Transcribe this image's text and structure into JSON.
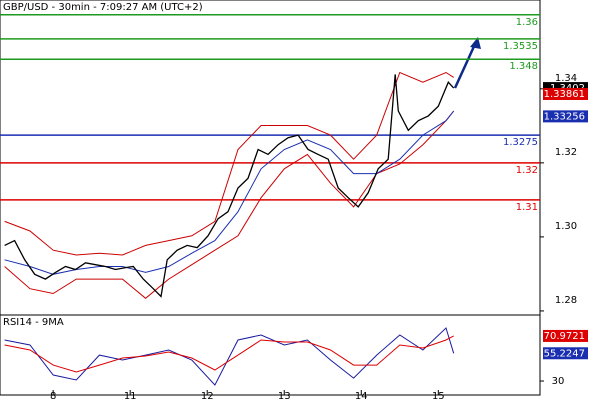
{
  "chart_data": {
    "type": "line",
    "title": "GBP/USD - 30min - 7:09:27 AM (UTC+2)",
    "x": [
      7.37,
      7.5,
      7.63,
      7.76,
      7.9,
      8.03,
      8.16,
      8.29,
      8.42,
      8.55,
      8.68,
      8.81,
      8.94,
      9.04,
      9.17,
      9.3,
      9.4,
      9.48,
      9.61,
      9.74,
      9.87,
      10.01,
      10.14,
      10.27,
      10.4,
      10.53,
      10.66,
      10.79,
      10.92,
      11.05,
      11.18,
      11.31,
      11.44,
      11.57,
      11.7,
      11.83,
      11.96,
      12.09,
      12.22,
      12.35,
      12.44,
      12.48,
      12.61,
      12.74,
      12.87,
      13.0,
      13.13,
      13.2
    ],
    "series": [
      {
        "color": "#000000",
        "values": [
          1.2977,
          1.299,
          1.2938,
          1.2899,
          1.2886,
          1.2904,
          1.292,
          1.2912,
          1.293,
          1.2925,
          1.292,
          1.2912,
          1.2917,
          1.292,
          1.2886,
          1.286,
          1.2839,
          1.2938,
          1.2964,
          1.2977,
          1.2971,
          1.3003,
          1.3049,
          1.3068,
          1.3132,
          1.3158,
          1.3236,
          1.3223,
          1.3249,
          1.3268,
          1.3275,
          1.3236,
          1.3223,
          1.321,
          1.3132,
          1.3106,
          1.3081,
          1.3119,
          1.3184,
          1.321,
          1.3439,
          1.334,
          1.3288,
          1.3314,
          1.3327,
          1.3353,
          1.3418,
          1.3402
        ]
      }
    ],
    "bands_x": [
      7.37,
      7.7,
      8.0,
      8.3,
      8.6,
      8.9,
      9.2,
      9.5,
      9.8,
      10.1,
      10.4,
      10.7,
      11.0,
      11.3,
      11.6,
      11.9,
      12.2,
      12.5,
      12.8,
      13.1,
      13.2
    ],
    "bands": [
      {
        "color": "#cc0000",
        "values": [
          1.3042,
          1.3016,
          1.2964,
          1.2951,
          1.2956,
          1.2951,
          1.2977,
          1.299,
          1.3003,
          1.3042,
          1.3236,
          1.3301,
          1.3301,
          1.3301,
          1.3275,
          1.321,
          1.3275,
          1.3444,
          1.3418,
          1.3444,
          1.3431
        ]
      },
      {
        "color": "#cc0000",
        "values": [
          1.292,
          1.286,
          1.2847,
          1.2886,
          1.2886,
          1.2886,
          1.2834,
          1.2886,
          1.2925,
          1.2964,
          1.3003,
          1.3106,
          1.3184,
          1.3223,
          1.3145,
          1.3081,
          1.3171,
          1.3197,
          1.3249,
          1.3314,
          1.334
        ]
      },
      {
        "color": "#1a2fb0",
        "values": [
          1.2938,
          1.292,
          1.2899,
          1.2912,
          1.292,
          1.292,
          1.2904,
          1.292,
          1.2956,
          1.299,
          1.3068,
          1.3184,
          1.3236,
          1.3262,
          1.3236,
          1.3171,
          1.3171,
          1.321,
          1.3275,
          1.3314,
          1.334
        ]
      }
    ],
    "xlim": [
      7.31,
      14.32
    ],
    "xticks": [
      8,
      {
        "value": 9,
        "label": "11"
      },
      {
        "value": 10,
        "label": "12"
      },
      {
        "value": 11,
        "label": "13"
      },
      {
        "value": 12,
        "label": "14"
      },
      {
        "value": 13,
        "label": "15"
      }
    ],
    "ylim": [
      1.2789,
      1.364
    ],
    "yticks": [
      1.28,
      {
        "value": 1.3,
        "label": "1.30"
      },
      1.32,
      1.34
    ],
    "levels": [
      {
        "value": 1.36,
        "color": "#1e9a1e"
      },
      {
        "value": 1.3535,
        "color": "#1e9a1e"
      },
      {
        "value": 1.348,
        "color": "#1e9a1e"
      },
      {
        "value": 1.3275,
        "color": "#1a2fb0"
      },
      {
        "value": 1.32,
        "color": "#dd0000"
      },
      {
        "value": 1.31,
        "color": "#dd0000"
      }
    ],
    "tags": [
      {
        "value": 1.3402,
        "color": "#000000"
      },
      {
        "value": 1.33861,
        "color": "#dd0000"
      },
      {
        "value": 1.33256,
        "color": "#1a2fb0"
      }
    ],
    "rsi": {
      "title": "RSI14 - 9MA",
      "ylim": [
        17.3,
        90
      ],
      "yticks": [
        30
      ],
      "series": [
        {
          "color": "#1a1aa0",
          "values": [
            67.3,
            62.7,
            35.5,
            30.9,
            53.6,
            49.1,
            53.6,
            58.2,
            49.1,
            26.4,
            67.3,
            71.8,
            62.7,
            67.3,
            49.1,
            32.7,
            53.6,
            71.8,
            58.2,
            78.2,
            55.2
          ]
        },
        {
          "color": "#dd0000",
          "values": [
            62.7,
            58.2,
            44.5,
            38.2,
            44.5,
            50.9,
            52.7,
            56.4,
            50.9,
            40,
            53.6,
            67.3,
            65.5,
            65.5,
            58.2,
            44.5,
            44.5,
            62.7,
            60,
            67.3,
            70.97
          ]
        }
      ],
      "tags": [
        {
          "value": 70.9721,
          "color": "#dd0000"
        },
        {
          "value": 55.2247,
          "color": "#1a2fb0"
        }
      ]
    }
  }
}
